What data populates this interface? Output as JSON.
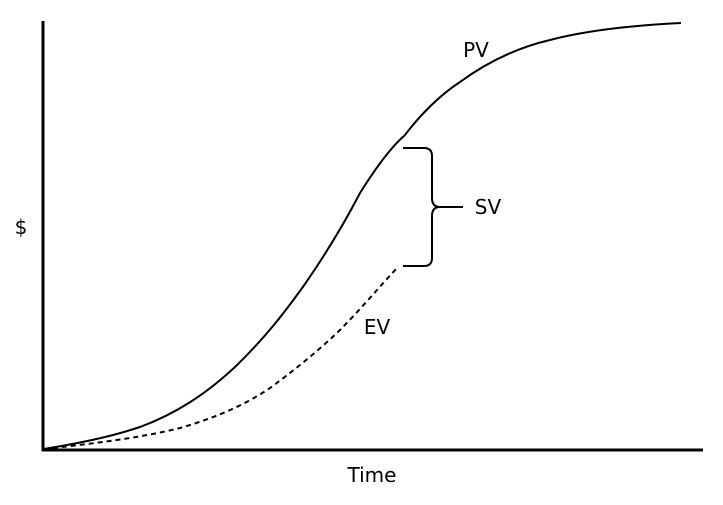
{
  "diagram": {
    "y_axis_label": "$",
    "x_axis_label": "Time",
    "pv_label": "PV",
    "ev_label": "EV",
    "sv_label": "SV",
    "pv_style": "solid",
    "ev_style": "dashed",
    "line_color": "#000000",
    "background": "#ffffff"
  }
}
